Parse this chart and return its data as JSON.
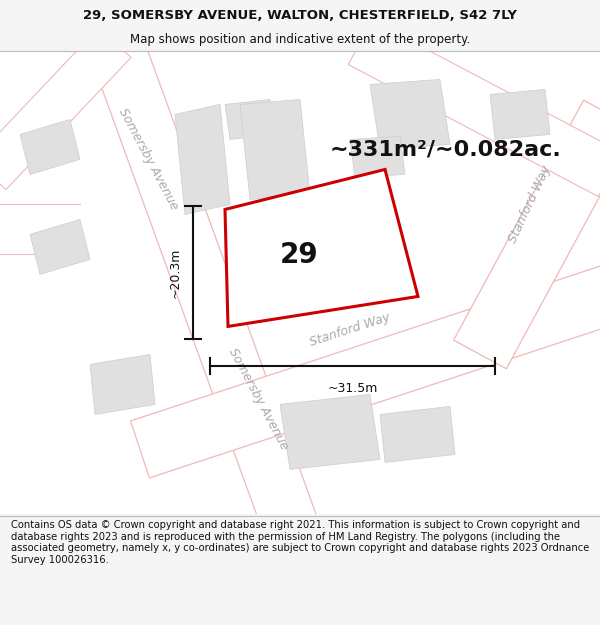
{
  "title_line1": "29, SOMERSBY AVENUE, WALTON, CHESTERFIELD, S42 7LY",
  "title_line2": "Map shows position and indicative extent of the property.",
  "footer": "Contains OS data © Crown copyright and database right 2021. This information is subject to Crown copyright and database rights 2023 and is reproduced with the permission of HM Land Registry. The polygons (including the associated geometry, namely x, y co-ordinates) are subject to Crown copyright and database rights 2023 Ordnance Survey 100026316.",
  "area_text": "~331m²/~0.082ac.",
  "width_text": "~31.5m",
  "height_text": "~20.3m",
  "number_text": "29",
  "bg_color": "#f5f5f5",
  "map_bg": "#ffffff",
  "road_line_color": "#f0b8b8",
  "plot_color": "#cc0000",
  "building_color": "#e0e0e0",
  "building_edge": "#cccccc",
  "road_label_color": "#aaaaaa",
  "dim_color": "#111111",
  "title_fontsize": 9.5,
  "subtitle_fontsize": 8.5,
  "footer_fontsize": 7.2,
  "area_fontsize": 16,
  "dim_fontsize": 9,
  "number_fontsize": 20,
  "road_label_fontsize": 9
}
